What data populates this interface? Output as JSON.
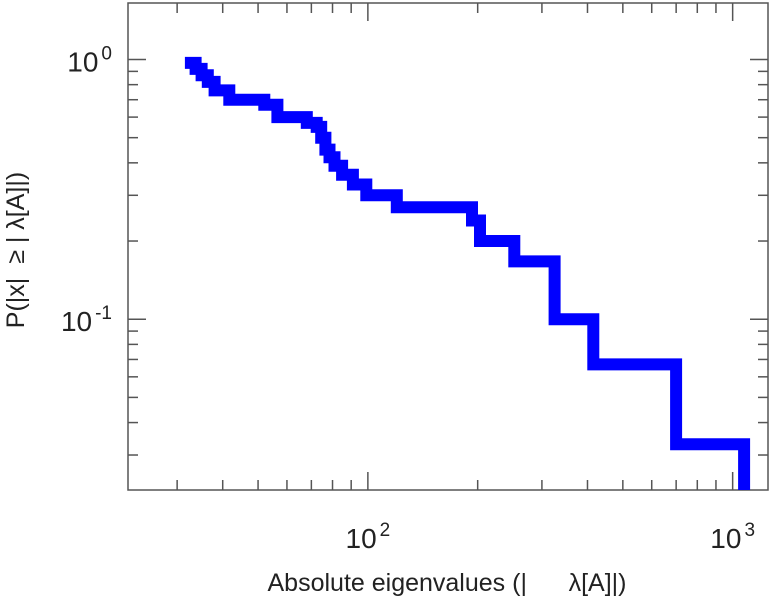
{
  "chart_data": {
    "type": "line",
    "title": "",
    "xlabel": "Absolute eigenvalues (|      λ[A]|)",
    "ylabel": "P(|x|  ≥ | λ[A]|)",
    "x_scale": "log",
    "y_scale": "log",
    "xlim": [
      22,
      1250
    ],
    "ylim": [
      0.022,
      1.65
    ],
    "x_ticks": [
      {
        "value": 100,
        "base": "10",
        "exp": "2"
      },
      {
        "value": 1000,
        "base": "10",
        "exp": "3"
      }
    ],
    "y_ticks": [
      {
        "value": 0.1,
        "base": "10",
        "exp": "-1"
      },
      {
        "value": 1,
        "base": "10",
        "exp": "0"
      }
    ],
    "grid": false,
    "color": "#0000ff",
    "step": true,
    "series": [
      {
        "x": [
          31.5,
          33.7,
          35,
          36.4,
          38,
          41.7,
          52,
          56.5,
          68,
          72.4,
          74.5,
          76.5,
          78.5,
          81,
          85,
          91,
          99,
          120,
          165,
          193,
          203,
          252,
          325,
          415,
          700,
          1075,
          1075
        ],
        "y": [
          0.97,
          0.92,
          0.87,
          0.82,
          0.76,
          0.7,
          0.67,
          0.6,
          0.57,
          0.55,
          0.5,
          0.45,
          0.42,
          0.39,
          0.36,
          0.33,
          0.3,
          0.27,
          0.27,
          0.24,
          0.2,
          0.167,
          0.1,
          0.067,
          0.033,
          0.033,
          0.022
        ]
      }
    ]
  }
}
